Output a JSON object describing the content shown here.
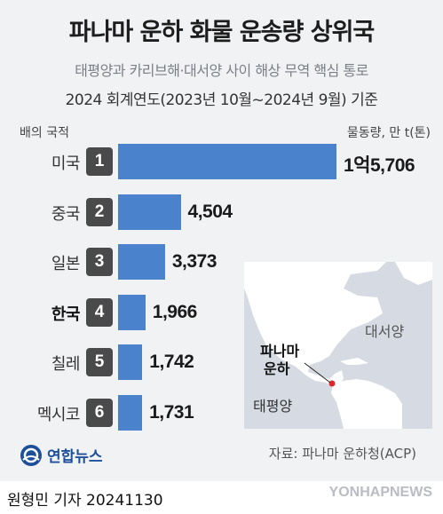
{
  "header": {
    "title": "파나마 운하 화물 운송량 상위국",
    "subtitle": "태평양과 카리브해·대서양 사이 해상 무역 핵심 통로",
    "period": "2024 회계연도(2023년 10월~2024년 9월) 기준"
  },
  "column_left_label": "배의 국적",
  "unit_label": "물동량, 만 t(톤)",
  "map": {
    "pacific_label": "태평양",
    "atlantic_label": "대서양",
    "canal_label_line1": "파나마",
    "canal_label_line2": "운하"
  },
  "chart_data": {
    "type": "bar",
    "orientation": "horizontal",
    "categories": [
      "미국",
      "중국",
      "일본",
      "한국",
      "칠레",
      "멕시코"
    ],
    "ranks": [
      "1",
      "2",
      "3",
      "4",
      "5",
      "6"
    ],
    "values": [
      15706,
      4504,
      3373,
      1966,
      1742,
      1731
    ],
    "value_labels": [
      "1억5,706",
      "4,504",
      "3,373",
      "1,966",
      "1,742",
      "1,731"
    ],
    "highlight_category": "한국",
    "bar_color": "#4a82cc"
  },
  "footer": {
    "logo_text": "연합뉴스",
    "source": "자료: 파나마 운하청(ACP)",
    "byline": "원형민 기자  20241130",
    "watermark": "YONHAPNEWS"
  }
}
